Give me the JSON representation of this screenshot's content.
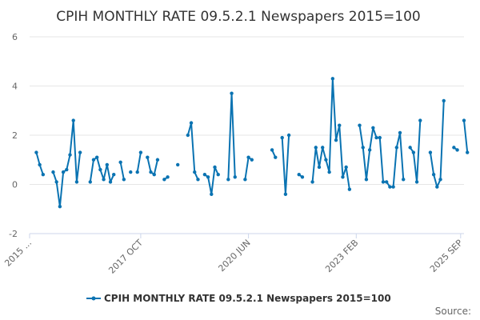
{
  "chart_data": {
    "type": "line",
    "title": "CPIH MONTHLY RATE 09.5.2.1 Newspapers 2015=100",
    "xlabel": "",
    "ylabel": "",
    "ylim": [
      -2,
      6
    ],
    "yticks": [
      -2,
      0,
      2,
      4,
      6
    ],
    "grid": true,
    "x_domain": [
      0,
      129
    ],
    "x_ticks": [
      {
        "label": "2015 ...",
        "index": 0
      },
      {
        "label": "2017 OCT",
        "index": 33
      },
      {
        "label": "2020 JUN",
        "index": 65
      },
      {
        "label": "2023 FEB",
        "index": 97
      },
      {
        "label": "2025 SEP",
        "index": 128
      }
    ],
    "legend": {
      "label": "CPIH MONTHLY RATE 09.5.2.1 Newspapers 2015=100",
      "position": "bottom"
    },
    "source_label": "Source:",
    "line_color": "#1f77b4",
    "series": [
      {
        "name": "CPIH MONTHLY RATE 09.5.2.1 Newspapers 2015=100",
        "values": [
          null,
          null,
          1.3,
          0.8,
          0.4,
          null,
          null,
          0.5,
          0.1,
          -0.9,
          0.5,
          0.6,
          1.2,
          2.6,
          0.1,
          1.3,
          null,
          null,
          0.1,
          1.0,
          1.1,
          0.6,
          0.2,
          0.8,
          0.1,
          0.4,
          null,
          0.9,
          0.2,
          null,
          0.5,
          null,
          0.5,
          1.3,
          null,
          1.1,
          0.5,
          0.4,
          1.0,
          null,
          0.2,
          0.3,
          null,
          null,
          0.8,
          null,
          null,
          2.0,
          2.5,
          0.5,
          0.2,
          null,
          0.4,
          0.3,
          -0.4,
          0.7,
          0.4,
          null,
          null,
          0.2,
          3.7,
          0.3,
          null,
          null,
          0.2,
          1.1,
          1.0,
          null,
          null,
          null,
          null,
          null,
          1.4,
          1.1,
          null,
          1.9,
          -0.4,
          2.0,
          null,
          null,
          0.4,
          0.3,
          null,
          null,
          0.1,
          1.5,
          0.7,
          1.5,
          1.0,
          0.5,
          4.3,
          1.8,
          2.4,
          0.3,
          0.7,
          -0.2,
          null,
          null,
          2.4,
          1.5,
          0.2,
          1.4,
          2.3,
          1.9,
          1.9,
          0.1,
          0.1,
          -0.1,
          -0.1,
          1.5,
          2.1,
          0.2,
          null,
          1.5,
          1.3,
          0.1,
          2.6,
          null,
          null,
          1.3,
          0.4,
          -0.1,
          0.2,
          3.4,
          null,
          null,
          1.5,
          1.4,
          null,
          2.6,
          1.3
        ]
      }
    ]
  }
}
